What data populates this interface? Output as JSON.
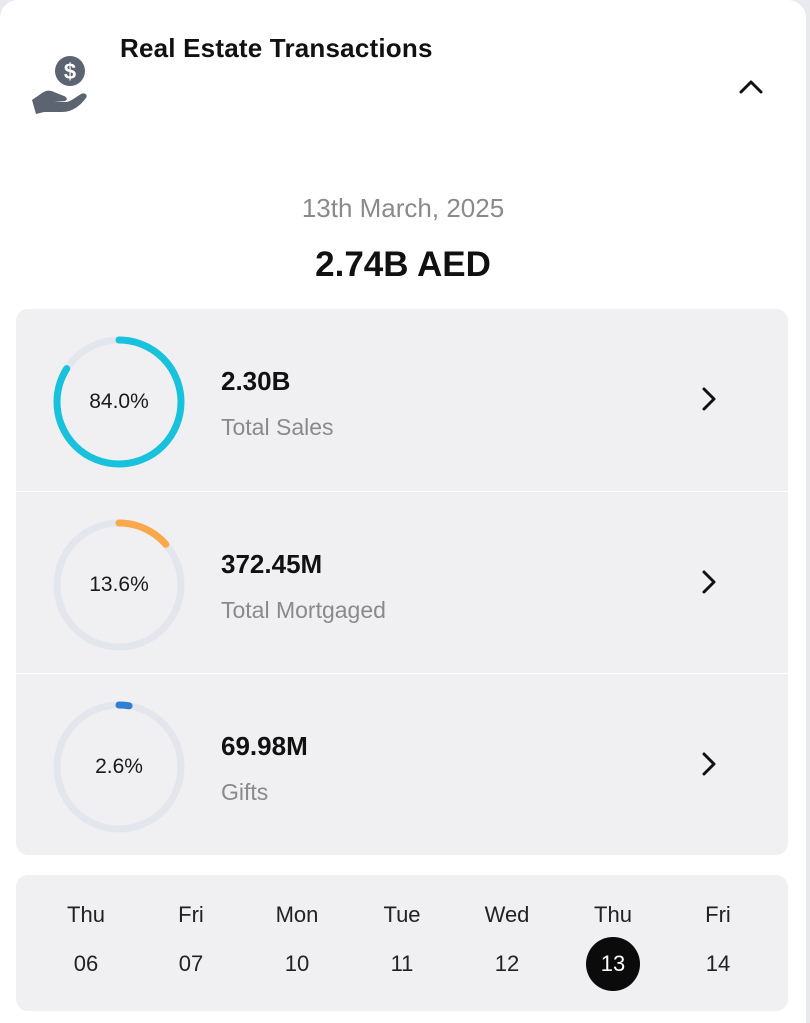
{
  "header": {
    "title": "Real Estate Transactions",
    "icon": "hand-money-icon",
    "collapse_icon": "chevron-up-icon"
  },
  "summary": {
    "date": "13th March, 2025",
    "total": "2.74B AED"
  },
  "stats": [
    {
      "percent_label": "84.0%",
      "fraction": 0.84,
      "value": "2.30B",
      "label": "Total Sales",
      "color": "#19c2dc"
    },
    {
      "percent_label": "13.6%",
      "fraction": 0.136,
      "value": "372.45M",
      "label": "Total Mortgaged",
      "color": "#f9a94c"
    },
    {
      "percent_label": "2.6%",
      "fraction": 0.026,
      "value": "69.98M",
      "label": "Gifts",
      "color": "#2f7fd1"
    }
  ],
  "colors": {
    "ring_track": "#e4e6ee",
    "panel_bg": "#f0f0f2",
    "selected_day_bg": "#0b0b0b"
  },
  "days": [
    {
      "name": "Thu",
      "num": "06",
      "selected": false
    },
    {
      "name": "Fri",
      "num": "07",
      "selected": false
    },
    {
      "name": "Mon",
      "num": "10",
      "selected": false
    },
    {
      "name": "Tue",
      "num": "11",
      "selected": false
    },
    {
      "name": "Wed",
      "num": "12",
      "selected": false
    },
    {
      "name": "Thu",
      "num": "13",
      "selected": true
    },
    {
      "name": "Fri",
      "num": "14",
      "selected": false
    }
  ]
}
